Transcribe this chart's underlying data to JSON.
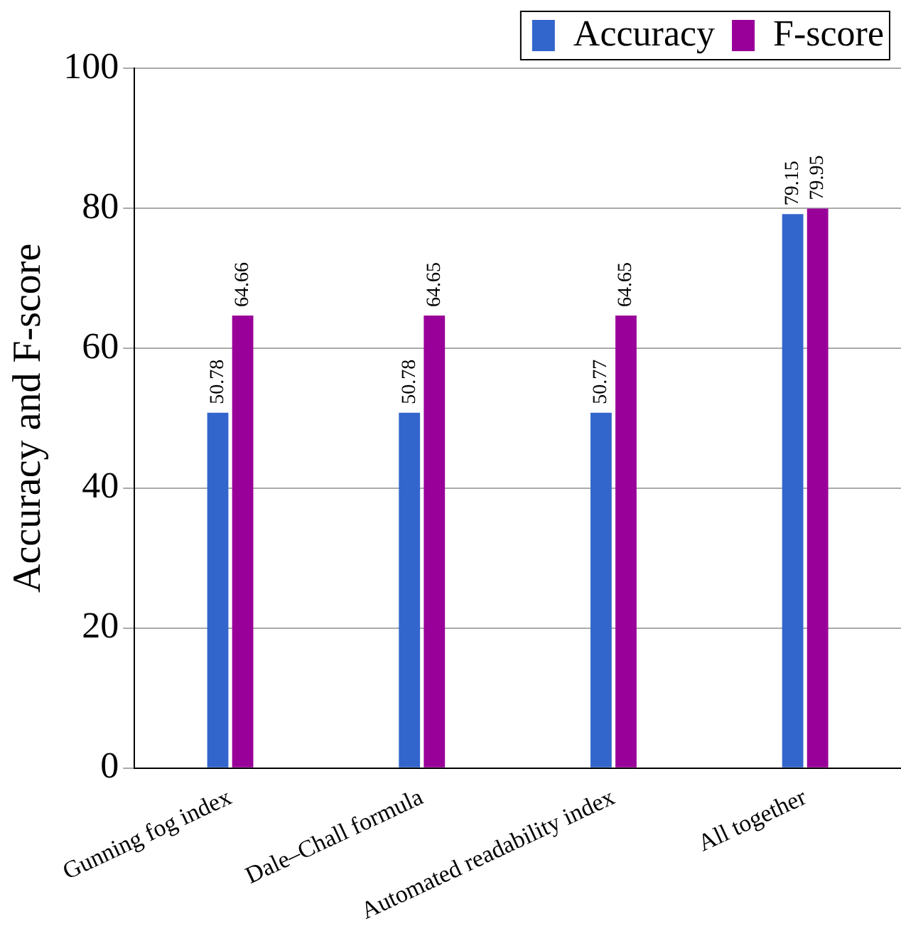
{
  "chart_data": {
    "type": "bar",
    "ylabel": "Accuracy and F-score",
    "categories": [
      "Gunning fog index",
      "Dale–Chall formula",
      "Automated readability index",
      "All together"
    ],
    "series": [
      {
        "name": "Accuracy",
        "color": "#3366cc",
        "values": [
          50.78,
          50.78,
          50.77,
          79.15
        ]
      },
      {
        "name": "F-score",
        "color": "#990099",
        "values": [
          64.66,
          64.65,
          64.65,
          79.95
        ]
      }
    ],
    "ylim": [
      0,
      100
    ],
    "yticks": [
      0,
      20,
      40,
      60,
      80,
      100
    ],
    "grid": "y",
    "legend": "top right",
    "data_labels": true
  }
}
